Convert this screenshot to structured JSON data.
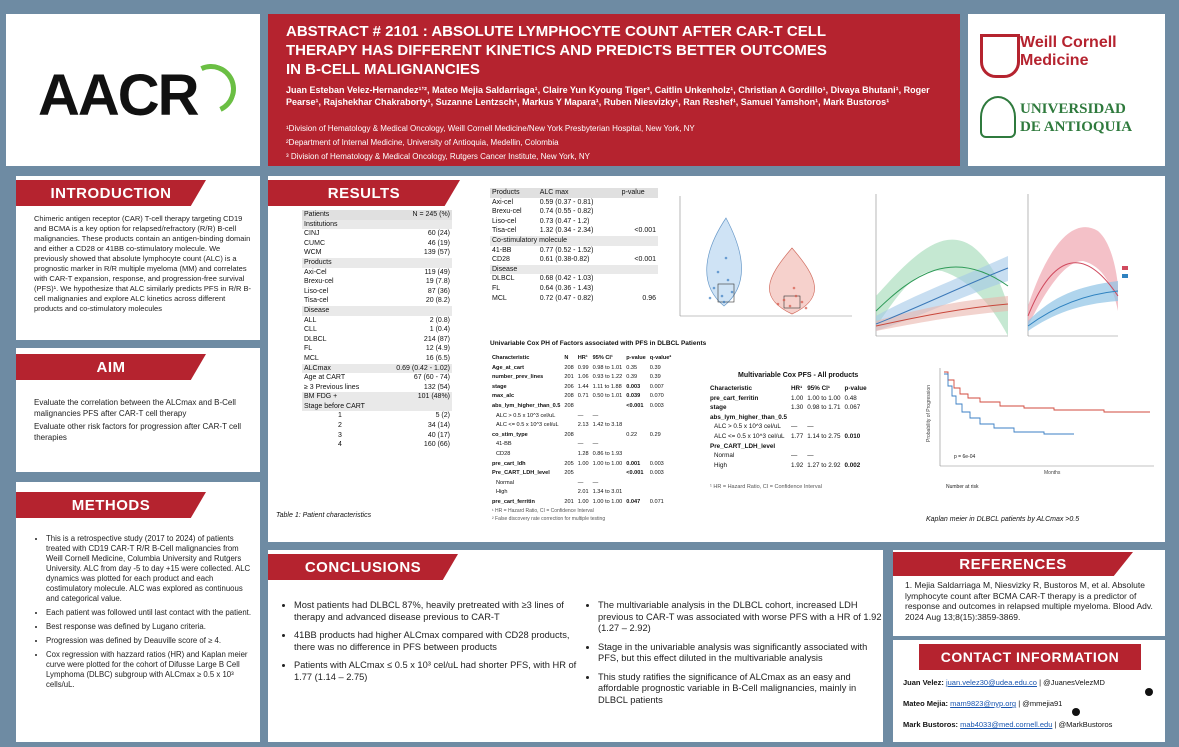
{
  "header": {
    "logo_text": "AACR",
    "title": "ABSTRACT # 2101 : ABSOLUTE LYMPHOCYTE COUNT AFTER CAR-T CELL THERAPY HAS DIFFERENT KINETICS AND PREDICTS BETTER OUTCOMES IN B-CELL MALIGNANCIES",
    "authors": "Juan Esteban Velez-Hernandez¹ʼ², Mateo Mejia Saldarriaga¹, Claire Yun Kyoung Tiger³, Caitlin Unkenholz¹, Christian A Gordillo¹, Divaya Bhutani¹, Roger Pearse¹, Rajshekhar Chakraborty¹, Suzanne Lentzsch¹, Markus Y Mapara¹, Ruben Niesvizky¹, Ran Reshef¹, Samuel Yamshon¹, Mark Bustoros¹",
    "affil1": "¹Division of Hematology & Medical Oncology, Weill Cornell Medicine/New York Presbyterian Hospital, New York, NY",
    "affil2": "²Department of Internal Medicine, University of Antioquia, Medellin, Colombia",
    "affil3": "³ Division of Hematology  & Medical Oncology, Rutgers Cancer Institute, New York, NY",
    "logo_weill_1": "Weill Cornell",
    "logo_weill_2": "Medicine",
    "logo_udea_1": "UNIVERSIDAD",
    "logo_udea_2": "DE ANTIOQUIA"
  },
  "intro": {
    "title": "INTRODUCTION",
    "text": "Chimeric antigen receptor (CAR) T-cell therapy targeting CD19 and BCMA is a key option for relapsed/refractory (R/R) B-cell malignancies. These products contain an antigen-binding domain and either a CD28 or 41BB co-stimulatory molecule. We previously showed that absolute lymphocyte count (ALC) is a prognostic marker in R/R multiple myeloma (MM) and correlates with CAR-T expansion, response, and progression-free survival (PFS)¹. We hypothesize that ALC similarly predicts PFS in R/R B-cell malignanies and explore ALC kinetics across different products and co-stimulatory molecules"
  },
  "aim": {
    "title": "AIM",
    "p1": "Evaluate the correlation between the ALCmax and B-Cell malignancies PFS after CAR-T cell therapy",
    "p2": "Evaluate other risk factors for progression after CAR-T cell therapies"
  },
  "methods": {
    "title": "METHODS",
    "items": [
      "This is a retrospective study (2017 to 2024) of patients treated with CD19 CAR-T R/R B-Cell malignancies from Weill Cornell Medicine, Columbia University and Rutgers University. ALC from day -5 to day +15 were collected. ALC dynamics was plotted for each product and each costimulatory molecule. ALC was explored as continuous and categorical value.",
      "Each patient was followed until last contact with the patient.",
      "Best response was defined by Lugano criteria.",
      "Progression was defined by Deauville score of ≥ 4.",
      "Cox regression with hazzard ratios (HR) and Kaplan meier curve were plotted for the cohort of Difusse Large B Cell Lymphoma (DLBC) subgroup with ALCmax ≥ 0.5 x 10³ cells/uL."
    ]
  },
  "results": {
    "title": "RESULTS",
    "table1": {
      "header": [
        "Patients",
        "N = 245 (%)"
      ],
      "rows": [
        {
          "cat": "Institutions"
        },
        {
          "l": "CINJ",
          "v": "60 (24)"
        },
        {
          "l": "CUMC",
          "v": "46 (19)"
        },
        {
          "l": "WCM",
          "v": "139 (57)"
        },
        {
          "cat": "Products"
        },
        {
          "l": "Axi-Cel",
          "v": "119 (49)"
        },
        {
          "l": "Brexu-cel",
          "v": "19 (7.8)"
        },
        {
          "l": "Liso-cel",
          "v": "87 (36)"
        },
        {
          "l": "Tisa-cel",
          "v": "20 (8.2)"
        },
        {
          "cat": "Disease"
        },
        {
          "l": "ALL",
          "v": "2 (0.8)"
        },
        {
          "l": "CLL",
          "v": "1 (0.4)"
        },
        {
          "l": "DLBCL",
          "v": "214 (87)"
        },
        {
          "l": "FL",
          "v": "12 (4.9)"
        },
        {
          "l": "MCL",
          "v": "16 (6.5)"
        },
        {
          "l": "ALCmax",
          "v": "0.69 (0.42 - 1.02)",
          "shade": true
        },
        {
          "l": "Age at CART",
          "v": "67 (60 - 74)"
        },
        {
          "l": "≥ 3 Previous lines",
          "v": "132 (54)"
        },
        {
          "l": "BM FDG +",
          "v": "101 (48%)",
          "shade": true
        },
        {
          "cat": "Stage before CART"
        },
        {
          "l": "1",
          "v": "5 (2)",
          "c": true
        },
        {
          "l": "2",
          "v": "34 (14)",
          "c": true
        },
        {
          "l": "3",
          "v": "40 (17)",
          "c": true
        },
        {
          "l": "4",
          "v": "160 (66)",
          "c": true
        }
      ],
      "caption": "Table 1: Patient characteristics"
    },
    "table2": {
      "header": [
        "Products",
        "ALC max",
        "p-value"
      ],
      "rows": [
        {
          "l": "Axi-cel",
          "v": "0.59 (0.37 - 0.81)",
          "p": ""
        },
        {
          "l": "Brexu-cel",
          "v": "0.74 (0.55 - 0.82)",
          "p": ""
        },
        {
          "l": "Liso-cel",
          "v": "0.73 (0.47 - 1.2)",
          "p": ""
        },
        {
          "l": "Tisa-cel",
          "v": "1.32 (0.34 - 2.34)",
          "p": "<0.001"
        },
        {
          "cat": "Co-stimulatory molecule"
        },
        {
          "l": "41-BB",
          "v": "0.77 (0.52 - 1.52)",
          "p": ""
        },
        {
          "l": "CD28",
          "v": "0.61 (0.38-0.82)",
          "p": "<0.001"
        },
        {
          "cat": "Disease"
        },
        {
          "l": "DLBCL",
          "v": "0.68 (0.42 - 1.03)",
          "p": ""
        },
        {
          "l": "FL",
          "v": "0.64 (0.36 - 1.43)",
          "p": ""
        },
        {
          "l": "MCL",
          "v": "0.72 (0.47 - 0.82)",
          "p": "0.96"
        }
      ]
    },
    "table3": {
      "title": "Univariable Cox PH of Factors associated with PFS in DLBCL Patients",
      "header": [
        "Characteristic",
        "N",
        "HR¹",
        "95% CI¹",
        "p-value",
        "q-value²"
      ],
      "rows": [
        [
          "Age_at_cart",
          "208",
          "0.99",
          "0.98 to 1.01",
          "0.35",
          "0.39"
        ],
        [
          "number_prev_lines",
          "201",
          "1.06",
          "0.93 to 1.22",
          "0.39",
          "0.39"
        ],
        [
          "stage",
          "206",
          "1.44",
          "1.11 to 1.88",
          "0.003",
          "0.007"
        ],
        [
          "max_alc",
          "208",
          "0.71",
          "0.50 to 1.01",
          "0.039",
          "0.070"
        ],
        [
          "abs_lym_higher_than_0.5",
          "208",
          "",
          "",
          "<0.001",
          "0.003"
        ],
        [
          "   ALC > 0.5 x 10^3 cel/uL",
          "",
          "—",
          "—",
          "",
          ""
        ],
        [
          "   ALC <= 0.5 x 10^3 cel/uL",
          "",
          "2.13",
          "1.42 to 3.18",
          "",
          ""
        ],
        [
          "co_stim_type",
          "208",
          "",
          "",
          "0.22",
          "0.29"
        ],
        [
          "   41-BB",
          "",
          "—",
          "—",
          "",
          ""
        ],
        [
          "   CD28",
          "",
          "1.28",
          "0.86 to 1.93",
          "",
          ""
        ],
        [
          "pre_cart_ldh",
          "205",
          "1.00",
          "1.00 to 1.00",
          "0.001",
          "0.003"
        ],
        [
          "Pre_CART_LDH_level",
          "205",
          "",
          "",
          "<0.001",
          "0.003"
        ],
        [
          "   Normal",
          "",
          "—",
          "—",
          "",
          ""
        ],
        [
          "   High",
          "",
          "2.01",
          "1.34 to 3.01",
          "",
          ""
        ],
        [
          "pre_cart_ferritin",
          "201",
          "1.00",
          "1.00 to 1.00",
          "0.047",
          "0.071"
        ]
      ],
      "foot1": "¹ HR = Hazard Ratio, CI = Confidence Interval",
      "foot2": "² False discovery rate correction for multiple testing"
    },
    "table4": {
      "title": "Multivariable Cox PFS - All products",
      "header": [
        "Characteristic",
        "HR¹",
        "95% CI¹",
        "p-value"
      ],
      "rows": [
        [
          "pre_cart_ferritin",
          "1.00",
          "1.00 to 1.00",
          "0.48"
        ],
        [
          "stage",
          "1.30",
          "0.98 to 1.71",
          "0.067"
        ],
        [
          "abs_lym_higher_than_0.5",
          "",
          "",
          ""
        ],
        [
          "   ALC > 0.5 x 10^3 cel/uL",
          "—",
          "—",
          ""
        ],
        [
          "   ALC <= 0.5 x 10^3 cel/uL",
          "1.77",
          "1.14 to 2.75",
          "0.010"
        ],
        [
          "Pre_CART_LDH_level",
          "",
          "",
          ""
        ],
        [
          "   Normal",
          "—",
          "—",
          ""
        ],
        [
          "   High",
          "1.92",
          "1.27 to 2.92",
          "0.002"
        ]
      ],
      "foot": "¹ HR = Hazard Ratio, CI = Confidence Interval"
    },
    "km": {
      "caption": "Kaplan meier in DLBCL patients by ALCmax >0.5",
      "pval": "p = 6e-04",
      "ylabel": "Probability of Progression",
      "xlabel": "Months",
      "risk_title": "Number at risk"
    }
  },
  "conclusions": {
    "title": "CONCLUSIONS",
    "left": [
      "Most patients had DLBCL 87%, heavily pretreated with ≥3 lines of therapy and advanced disease previous to CAR-T",
      "41BB products had higher ALCmax compared with CD28 products, there was no difference in PFS between products",
      "Patients with ALCmax ≤ 0.5 x 10³ cel/uL had shorter PFS, with HR of 1.77 (1.14 – 2.75)"
    ],
    "right": [
      "The multivariable analysis in the DLBCL cohort, increased LDH previous to CAR-T was associated with worse PFS with a HR of 1.92 (1.27 – 2.92)",
      "Stage in the univariable analysis was significantly associated with PFS, but this effect diluted in the multivariable analysis",
      "This study ratifies the significance of ALCmax as an easy and affordable prognostic variable in B-Cell malignancies, mainly in DLBCL patients"
    ]
  },
  "references": {
    "title": "REFERENCES",
    "text": "1. Mejia Saldarriaga M, Niesvizky R, Bustoros M, et al. Absolute lymphocyte count after BCMA CAR-T therapy is a predictor of response and outcomes in relapsed multiple myeloma. Blood Adv. 2024 Aug 13;8(15):3859-3869."
  },
  "contact": {
    "title": "CONTACT INFORMATION",
    "rows": [
      {
        "name": "Juan Velez:",
        "email": "juan.velez30@udea.edu.co",
        "handle": "| @JuanesVelezMD"
      },
      {
        "name": "Mateo Mejia:",
        "email": "mam9823@nyp.org",
        "handle": "| @mmejia91"
      },
      {
        "name": "Mark Bustoros:",
        "email": "mab4033@med.cornell.edu",
        "handle": "| @MarkBustoros"
      }
    ]
  },
  "colors": {
    "accent": "#b5232f",
    "background": "#6e8ba3",
    "link": "#1a56b0"
  }
}
